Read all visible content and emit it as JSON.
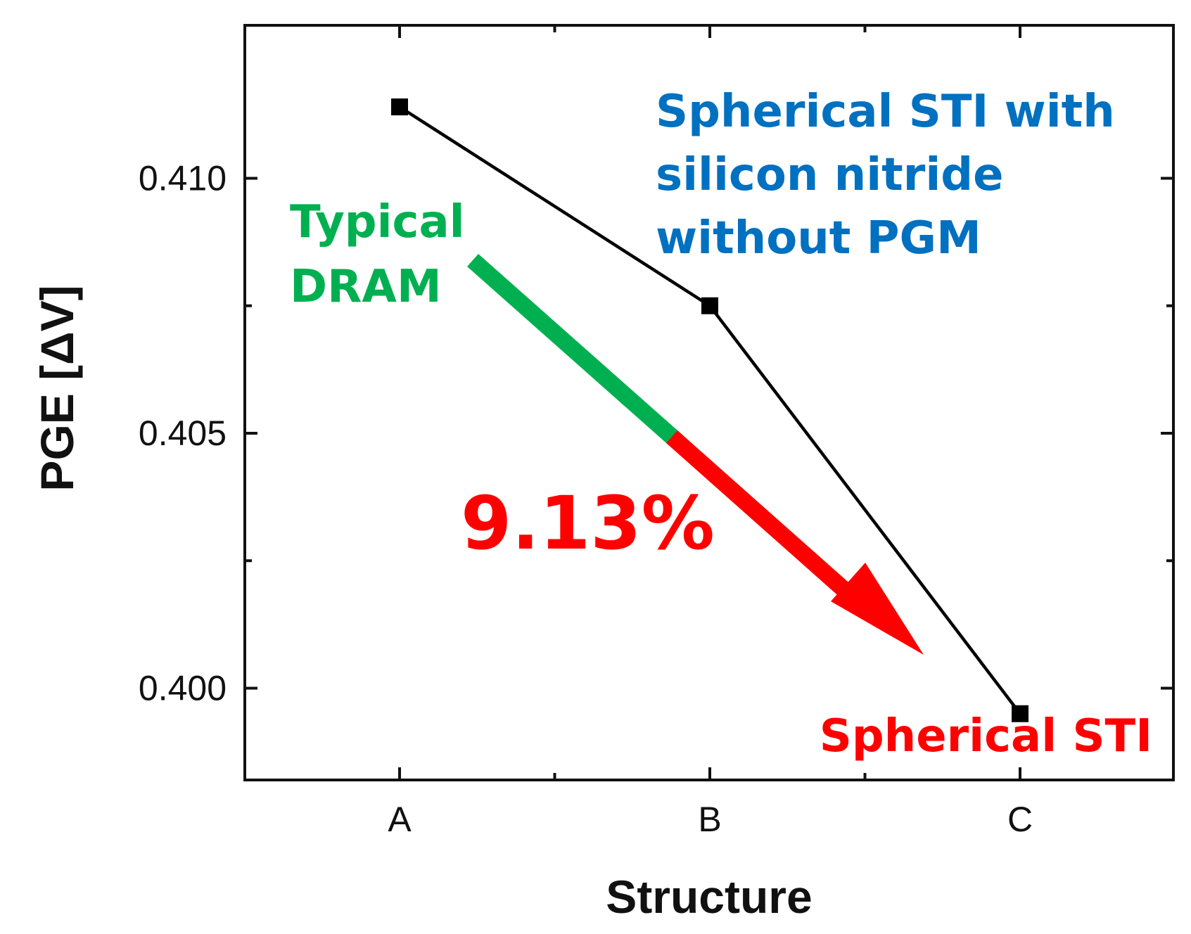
{
  "chart_data": {
    "type": "line",
    "title": "",
    "xlabel": "Structure",
    "ylabel": "PGE [ΔV]",
    "categories": [
      "A",
      "B",
      "C"
    ],
    "series": [
      {
        "name": "PGE",
        "values": [
          0.4114,
          0.4075,
          0.3995
        ]
      }
    ],
    "ylim": [
      0.3982,
      0.413
    ],
    "yticks": [
      0.4,
      0.405,
      0.41
    ],
    "ytick_labels": [
      "0.400",
      "0.405",
      "0.410"
    ],
    "grid": false,
    "annotations": {
      "typical_line1": "Typical",
      "typical_line2": "DRAM",
      "nitride_line1": "Spherical STI with",
      "nitride_line2": "silicon nitride",
      "nitride_line3": "without PGM",
      "reduction": "9.13%",
      "spherical": "Spherical STI"
    },
    "colors": {
      "line": "#000000",
      "typical": "#00b050",
      "nitride": "#0070c0",
      "reduction": "#ff0000"
    }
  }
}
